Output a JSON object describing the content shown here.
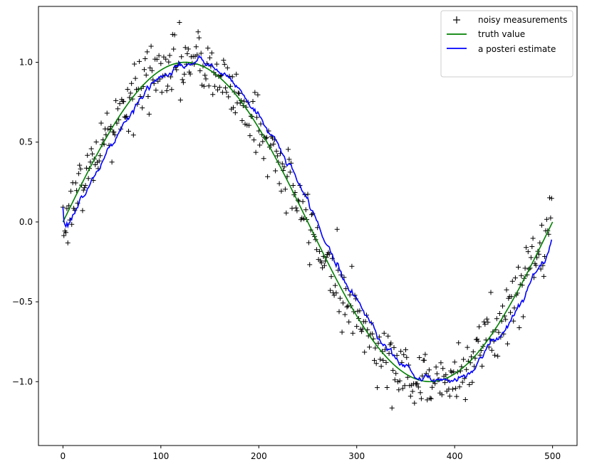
{
  "chart_data": {
    "type": "line",
    "title": "",
    "xlabel": "",
    "ylabel": "",
    "xlim": [
      -25,
      525
    ],
    "ylim": [
      -1.4,
      1.35
    ],
    "xticks": [
      0,
      100,
      200,
      300,
      400,
      500
    ],
    "xtick_labels": [
      "0",
      "100",
      "200",
      "300",
      "400",
      "500"
    ],
    "yticks": [
      -1.0,
      -0.5,
      0.0,
      0.5,
      1.0
    ],
    "ytick_labels": [
      "−1.0",
      "−0.5",
      "0.0",
      "0.5",
      "1.0"
    ],
    "grid": false,
    "legend_location": "upper right",
    "series": [
      {
        "name": "noisy measurements",
        "style": "markers",
        "marker": "+",
        "color": "#000000",
        "x_start": 0,
        "x_step": 1,
        "count": 500,
        "model": "sin(2*pi*x/500) + gaussian noise, sd 0.1"
      },
      {
        "name": "truth value",
        "style": "line",
        "color": "#008000",
        "x_start": 0,
        "x_step": 1,
        "count": 501,
        "model": "sin(2*pi*x/500)"
      },
      {
        "name": "a posteri estimate",
        "style": "line",
        "color": "#0000ff",
        "x_start": 0,
        "x_step": 1,
        "count": 500,
        "model": "running filtered estimate of the measurements (lags truth by about 10 samples)"
      }
    ]
  }
}
